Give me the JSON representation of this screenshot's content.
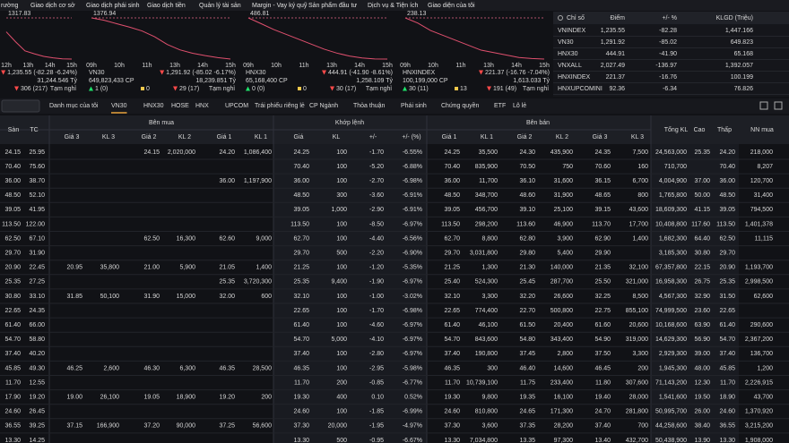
{
  "menu": [
    "rường",
    "Giao dịch cơ sở",
    "Giao dịch phái sinh",
    "Giao dịch tiền",
    "Quản lý tài sản",
    "Margin - Vay ký quỹ",
    "Sản phẩm đầu tư",
    "Dịch vụ & Tiện ích",
    "Giao diện của tôi"
  ],
  "mini_charts": [
    {
      "ref": "1317.83",
      "times": [
        "12h",
        "13h",
        "14h",
        "15h"
      ],
      "line": [
        1290,
        1270,
        1252,
        1246,
        1241,
        1238,
        1236,
        1235.55
      ],
      "change": "1,235.55 (-82.28 -6.24%)",
      "value": "31,244.546 Tỷ",
      "down": "306 (217)",
      "status": "Tạm nghỉ"
    },
    {
      "name": "VN30",
      "ref": "1376.94",
      "times": [
        "09h",
        "10h",
        "11h",
        "13h",
        "14h",
        "15h"
      ],
      "line": [
        1376.94,
        1372,
        1365,
        1358,
        1350,
        1338,
        1322,
        1311,
        1304,
        1299,
        1295,
        1291.92
      ],
      "change": "1,291.92 (-85.02 -6.17%)",
      "volume": "649,823,433 CP",
      "value": "18,239.851 Tỷ",
      "up": "1 (0)",
      "flat": "0",
      "down": "29 (17)",
      "status": "Tạm nghỉ"
    },
    {
      "name": "HNX30",
      "ref": "486.81",
      "times": [
        "09h",
        "10h",
        "11h",
        "13h",
        "14h",
        "15h"
      ],
      "line": [
        486.81,
        481,
        475,
        470,
        465,
        460,
        455,
        451,
        448,
        446,
        445,
        444.91
      ],
      "change": "444.91 (-41.90 -8.61%)",
      "volume": "65,168,400 CP",
      "value": "1,258.109 Tỷ",
      "up": "0 (0)",
      "flat": "0",
      "down": "30 (17)",
      "status": "Tạm nghỉ"
    },
    {
      "name": "HNXINDEX",
      "ref": "238.13",
      "times": [
        "09h",
        "10h",
        "11h",
        "13h",
        "14h",
        "15h"
      ],
      "line": [
        238.13,
        236,
        233,
        231,
        229,
        227,
        225,
        224,
        223,
        222,
        221.6,
        221.37
      ],
      "change": "221.37 (-16.76 -7.04%)",
      "volume": "100,199,000 CP",
      "value": "1,613.033 Tỷ",
      "up": "30 (11)",
      "flat": "13",
      "down": "191 (49)",
      "status": "Tạm nghỉ"
    }
  ],
  "index_table": {
    "headers": [
      "Chỉ số",
      "Điểm",
      "+/- %",
      "KLGD (Triệu)"
    ],
    "rows": [
      [
        "VNINDEX",
        "1,235.55",
        "-82.28",
        "1,447.166"
      ],
      [
        "VN30",
        "1,291.92",
        "-85.02",
        "649.823"
      ],
      [
        "HNX30",
        "444.91",
        "-41.90",
        "65.168"
      ],
      [
        "VNXALL",
        "2,027.49",
        "-136.97",
        "1,392.057"
      ],
      [
        "HNXINDEX",
        "221.37",
        "-16.76",
        "100.199"
      ],
      [
        "HNXUPCOMINI",
        "92.36",
        "-6.34",
        "76.826"
      ]
    ]
  },
  "tabs": [
    "Danh mục của tôi",
    "VN30",
    "HNX30",
    "HOSE",
    "HNX",
    "UPCOM",
    "Trái phiếu riêng lẻ",
    "CP Ngành",
    "Thỏa thuận",
    "Phái sinh",
    "Chứng quyền",
    "ETF",
    "Lô lẻ"
  ],
  "board": {
    "groups": [
      "Bên mua",
      "Khớp lệnh",
      "Bên bán"
    ],
    "headers": [
      "Sàn",
      "TC",
      "Giá 3",
      "KL 3",
      "Giá 2",
      "KL 2",
      "Giá 1",
      "KL 1",
      "Giá",
      "KL",
      "+/-",
      "+/- (%)",
      "Giá 1",
      "KL 1",
      "Giá 2",
      "KL 2",
      "Giá 3",
      "KL 3",
      "Tổng KL",
      "Cao",
      "Thấp",
      "NN mua"
    ],
    "rows": [
      [
        "24.15",
        "25.95",
        null,
        null,
        "24.15",
        "2,020,000",
        "24.20",
        "1,086,400",
        "24.25",
        "100",
        "-1.70",
        "-6.55%",
        "24.25",
        "35,500",
        "24.30",
        "435,900",
        "24.35",
        "7,500",
        "24,563,000",
        "25.35",
        "24.20",
        "218,000"
      ],
      [
        "70.40",
        "75.60",
        null,
        null,
        null,
        null,
        null,
        null,
        "70.40",
        "100",
        "-5.20",
        "-6.88%",
        "70.40",
        "835,900",
        "70.50",
        "750",
        "70.60",
        "160",
        "710,700",
        null,
        "70.40",
        "8,207"
      ],
      [
        "36.00",
        "38.70",
        null,
        null,
        null,
        null,
        "36.00",
        "1,197,900",
        "36.00",
        "100",
        "-2.70",
        "-6.98%",
        "36.00",
        "11,700",
        "36.10",
        "31,600",
        "36.15",
        "6,700",
        "4,004,900",
        "37.00",
        "36.00",
        "120,700"
      ],
      [
        "48.50",
        "52.10",
        null,
        null,
        null,
        null,
        null,
        null,
        "48.50",
        "300",
        "-3.60",
        "-6.91%",
        "48.50",
        "348,700",
        "48.60",
        "31,900",
        "48.65",
        "800",
        "1,765,800",
        "50.00",
        "48.50",
        "31,400"
      ],
      [
        "39.05",
        "41.95",
        null,
        null,
        null,
        null,
        null,
        null,
        "39.05",
        "1,000",
        "-2.90",
        "-6.91%",
        "39.05",
        "456,700",
        "39.10",
        "25,100",
        "39.15",
        "43,600",
        "18,609,300",
        "41.15",
        "39.05",
        "794,500"
      ],
      [
        "113.50",
        "122.00",
        null,
        null,
        null,
        null,
        null,
        null,
        "113.50",
        "100",
        "-8.50",
        "-6.97%",
        "113.50",
        "298,200",
        "113.60",
        "46,900",
        "113.70",
        "17,700",
        "10,408,800",
        "117.60",
        "113.50",
        "1,401,378"
      ],
      [
        "62.50",
        "67.10",
        null,
        null,
        "62.50",
        "16,300",
        "62.60",
        "9,000",
        "62.70",
        "100",
        "-4.40",
        "-6.56%",
        "62.70",
        "8,800",
        "62.80",
        "3,900",
        "62.90",
        "1,400",
        "1,682,300",
        "64.40",
        "62.50",
        "11,115"
      ],
      [
        "29.70",
        "31.90",
        null,
        null,
        null,
        null,
        null,
        null,
        "29.70",
        "500",
        "-2.20",
        "-6.90%",
        "29.70",
        "3,031,800",
        "29.80",
        "5,400",
        "29.90",
        null,
        "3,185,300",
        "30.80",
        "29.70",
        null
      ],
      [
        "20.90",
        "22.45",
        "20.95",
        "35,800",
        "21.00",
        "5,900",
        "21.05",
        "1,400",
        "21.25",
        "100",
        "-1.20",
        "-5.35%",
        "21.25",
        "1,300",
        "21.30",
        "140,000",
        "21.35",
        "32,100",
        "67,357,800",
        "22.15",
        "20.90",
        "1,193,700"
      ],
      [
        "25.35",
        "27.25",
        null,
        null,
        null,
        null,
        "25.35",
        "3,720,300",
        "25.35",
        "9,400",
        "-1.90",
        "-6.97%",
        "25.40",
        "524,300",
        "25.45",
        "287,700",
        "25.50",
        "321,000",
        "16,958,300",
        "26.75",
        "25.35",
        "2,998,500"
      ],
      [
        "30.80",
        "33.10",
        "31.85",
        "50,100",
        "31.90",
        "15,000",
        "32.00",
        "600",
        "32.10",
        "100",
        "-1.00",
        "-3.02%",
        "32.10",
        "3,300",
        "32.20",
        "26,600",
        "32.25",
        "8,500",
        "4,567,300",
        "32.90",
        "31.50",
        "62,600"
      ],
      [
        "22.65",
        "24.35",
        null,
        null,
        null,
        null,
        null,
        null,
        "22.65",
        "100",
        "-1.70",
        "-6.98%",
        "22.65",
        "774,400",
        "22.70",
        "500,800",
        "22.75",
        "855,100",
        "74,999,500",
        "23.60",
        "22.65",
        null
      ],
      [
        "61.40",
        "66.00",
        null,
        null,
        null,
        null,
        null,
        null,
        "61.40",
        "100",
        "-4.60",
        "-6.97%",
        "61.40",
        "46,100",
        "61.50",
        "20,400",
        "61.60",
        "20,600",
        "10,168,600",
        "63.90",
        "61.40",
        "290,600"
      ],
      [
        "54.70",
        "58.80",
        null,
        null,
        null,
        null,
        null,
        null,
        "54.70",
        "5,000",
        "-4.10",
        "-6.97%",
        "54.70",
        "843,600",
        "54.80",
        "343,400",
        "54.90",
        "319,000",
        "14,629,300",
        "56.90",
        "54.70",
        "2,367,200"
      ],
      [
        "37.40",
        "40.20",
        null,
        null,
        null,
        null,
        null,
        null,
        "37.40",
        "100",
        "-2.80",
        "-6.97%",
        "37.40",
        "190,800",
        "37.45",
        "2,800",
        "37.50",
        "3,300",
        "2,929,300",
        "39.00",
        "37.40",
        "136,700"
      ],
      [
        "45.85",
        "49.30",
        "46.25",
        "2,600",
        "46.30",
        "6,300",
        "46.35",
        "28,500",
        "46.35",
        "100",
        "-2.95",
        "-5.98%",
        "46.35",
        "300",
        "46.40",
        "14,600",
        "46.45",
        "200",
        "1,945,300",
        "48.00",
        "45.85",
        "1,200"
      ],
      [
        "11.70",
        "12.55",
        null,
        null,
        null,
        null,
        null,
        null,
        "11.70",
        "200",
        "-0.85",
        "-6.77%",
        "11.70",
        "10,739,100",
        "11.75",
        "233,400",
        "11.80",
        "307,600",
        "71,143,200",
        "12.30",
        "11.70",
        "2,226,915"
      ],
      [
        "17.90",
        "19.20",
        "19.00",
        "26,100",
        "19.05",
        "18,900",
        "19.20",
        "200",
        "19.30",
        "400",
        "0.10",
        "0.52%",
        "19.30",
        "9,800",
        "19.35",
        "16,100",
        "19.40",
        "28,000",
        "1,541,600",
        "19.50",
        "18.90",
        "43,700"
      ],
      [
        "24.60",
        "26.45",
        null,
        null,
        null,
        null,
        null,
        null,
        "24.60",
        "100",
        "-1.85",
        "-6.99%",
        "24.60",
        "810,800",
        "24.65",
        "171,300",
        "24.70",
        "281,800",
        "50,995,700",
        "26.00",
        "24.60",
        "1,370,920"
      ],
      [
        "36.55",
        "39.25",
        "37.15",
        "166,900",
        "37.20",
        "90,000",
        "37.25",
        "56,600",
        "37.30",
        "20,000",
        "-1.95",
        "-4.97%",
        "37.30",
        "3,600",
        "37.35",
        "28,200",
        "37.40",
        "700",
        "44,258,600",
        "38.40",
        "36.55",
        "3,215,200"
      ],
      [
        "13.30",
        "14.25",
        null,
        null,
        null,
        null,
        null,
        null,
        "13.30",
        "500",
        "-0.95",
        "-6.67%",
        "13.30",
        "7,034,800",
        "13.35",
        "97,300",
        "13.40",
        "432,700",
        "50,438,900",
        "13.90",
        "13.30",
        "1,908,000"
      ]
    ]
  }
}
